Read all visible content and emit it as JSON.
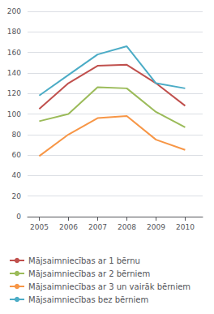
{
  "chart_data": {
    "type": "line",
    "x": [
      2005,
      2006,
      2007,
      2008,
      2009,
      2010
    ],
    "series": [
      {
        "name": "Mājsaimniecības ar 1 bērnu",
        "color": "#c0504d",
        "values": [
          105,
          130,
          147,
          148,
          130,
          108
        ]
      },
      {
        "name": "Mājsaimniecības ar 2 bērniem",
        "color": "#9bbb59",
        "values": [
          93,
          100,
          126,
          125,
          102,
          87
        ]
      },
      {
        "name": "Mājsaimniecības ar 3 un vairāk bērniem",
        "color": "#f79646",
        "values": [
          59,
          80,
          96,
          98,
          75,
          65
        ]
      },
      {
        "name": "Mājsaimniecības bez bērniem",
        "color": "#4bacc6",
        "values": [
          118,
          138,
          158,
          166,
          130,
          125
        ]
      }
    ],
    "xlim": [
      2004.6,
      2010.6
    ],
    "xticks": [
      2005,
      2006,
      2007,
      2008,
      2009,
      2010
    ],
    "ylim": [
      0,
      200
    ],
    "yticks": [
      0,
      20,
      40,
      60,
      80,
      100,
      120,
      140,
      160,
      180,
      200
    ],
    "grid": true,
    "legend": "bottom"
  }
}
